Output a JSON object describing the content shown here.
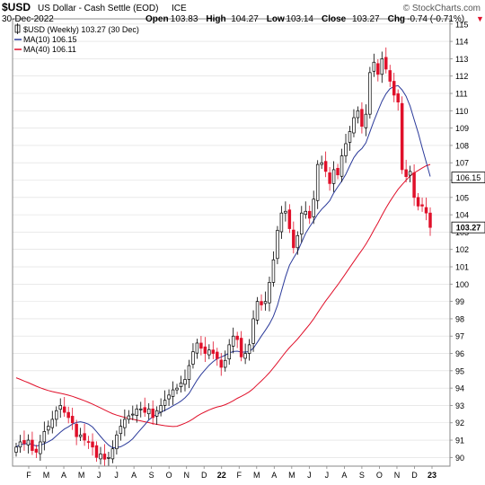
{
  "header": {
    "symbol": "$USD",
    "name": "US Dollar - Cash Settle (EOD)",
    "exchange": "ICE",
    "source": "© StockCharts.com",
    "date": "30-Dec-2022",
    "ohlc": [
      {
        "label": "Open",
        "value": "103.83"
      },
      {
        "label": "High",
        "value": "104.27"
      },
      {
        "label": "Low",
        "value": "103.14"
      },
      {
        "label": "Close",
        "value": "103.27"
      },
      {
        "label": "Chg",
        "value": "-0.74 (-0.71%)"
      }
    ],
    "down_arrow": "▼"
  },
  "legend": [
    {
      "text": "$USD (Weekly) 103.27 (30 Dec)",
      "color": "#000000"
    },
    {
      "text": "MA(10) 106.15",
      "color": "#2b3a9a"
    },
    {
      "text": "MA(40) 106.11",
      "color": "#e0102a"
    }
  ],
  "colors": {
    "up": "#ffffff",
    "down": "#e0102a",
    "ma10": "#2b3a9a",
    "ma40": "#e0102a",
    "grid": "#dcdcdc",
    "axis": "#888888"
  },
  "chart_data": {
    "type": "candlestick",
    "ylim": [
      89.5,
      115.3
    ],
    "y_ticks": [
      90,
      91,
      92,
      93,
      94,
      95,
      96,
      97,
      98,
      99,
      100,
      101,
      102,
      103,
      104,
      105,
      106,
      107,
      108,
      109,
      110,
      111,
      112,
      113,
      114,
      115
    ],
    "x_labels": [
      "F",
      "M",
      "A",
      "M",
      "J",
      "J",
      "A",
      "S",
      "O",
      "N",
      "D",
      "22",
      "F",
      "M",
      "A",
      "M",
      "J",
      "J",
      "A",
      "S",
      "O",
      "N",
      "D",
      "23"
    ],
    "price_tags": [
      {
        "label": "106.15",
        "value": 106.15
      },
      {
        "label": "103.27",
        "value": 103.27
      }
    ],
    "closes": [
      90.6,
      90.9,
      90.8,
      91.0,
      90.4,
      90.3,
      90.9,
      91.5,
      91.8,
      92.2,
      92.7,
      93.0,
      92.6,
      92.3,
      92.0,
      91.2,
      91.3,
      91.0,
      90.9,
      90.6,
      90.0,
      90.2,
      89.9,
      90.0,
      90.5,
      91.3,
      91.8,
      92.2,
      92.4,
      92.5,
      92.8,
      92.8,
      92.6,
      92.8,
      92.3,
      92.7,
      93.0,
      93.3,
      93.6,
      93.9,
      94.0,
      94.3,
      94.5,
      95.3,
      96.1,
      96.6,
      96.3,
      96.0,
      96.2,
      96.0,
      95.7,
      95.2,
      95.6,
      96.5,
      97.0,
      96.8,
      95.8,
      96.0,
      96.5,
      98.0,
      99.0,
      98.8,
      99.0,
      100.1,
      101.4,
      103.1,
      104.1,
      104.2,
      103.2,
      102.1,
      102.8,
      104.1,
      104.2,
      103.8,
      104.9,
      106.9,
      107.0,
      106.5,
      105.8,
      106.6,
      106.3,
      107.4,
      108.1,
      108.8,
      109.6,
      110.0,
      109.1,
      109.8,
      112.2,
      112.8,
      112.1,
      113.0,
      112.4,
      111.7,
      110.9,
      110.5,
      106.6,
      106.2,
      106.5,
      105.0,
      104.5,
      104.5,
      104.1,
      103.27
    ],
    "ma10_final": 106.15,
    "ma40_final": 106.11
  }
}
